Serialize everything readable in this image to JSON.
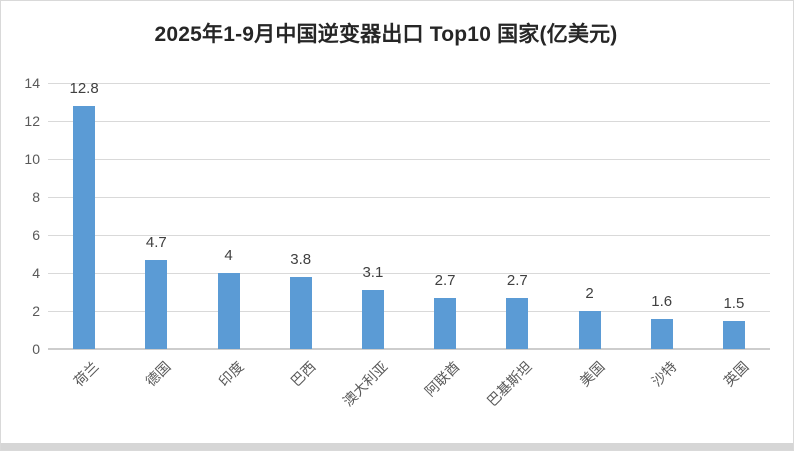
{
  "chart_data": {
    "type": "bar",
    "title": "2025年1-9月中国逆变器出口 Top10 国家(亿美元)",
    "categories": [
      "荷兰",
      "德国",
      "印度",
      "巴西",
      "澳大利亚",
      "阿联酋",
      "巴基斯坦",
      "美国",
      "沙特",
      "英国"
    ],
    "values": [
      12.8,
      4.7,
      4,
      3.8,
      3.1,
      2.7,
      2.7,
      2,
      1.6,
      1.5
    ],
    "value_labels": [
      "12.8",
      "4.7",
      "4",
      "3.8",
      "3.1",
      "2.7",
      "2.7",
      "2",
      "1.6",
      "1.5"
    ],
    "xlabel": "",
    "ylabel": "",
    "ylim": [
      0,
      14
    ],
    "yticks": [
      0,
      2,
      4,
      6,
      8,
      10,
      12,
      14
    ],
    "grid": true,
    "legend": false,
    "x_label_rotation_deg": 45
  },
  "colors": {
    "bar": "#5b9bd5",
    "grid": "#d9d9d9",
    "axis": "#cdcdcd",
    "tick_text": "#595959",
    "value_text": "#404040",
    "title_text": "#262626"
  }
}
